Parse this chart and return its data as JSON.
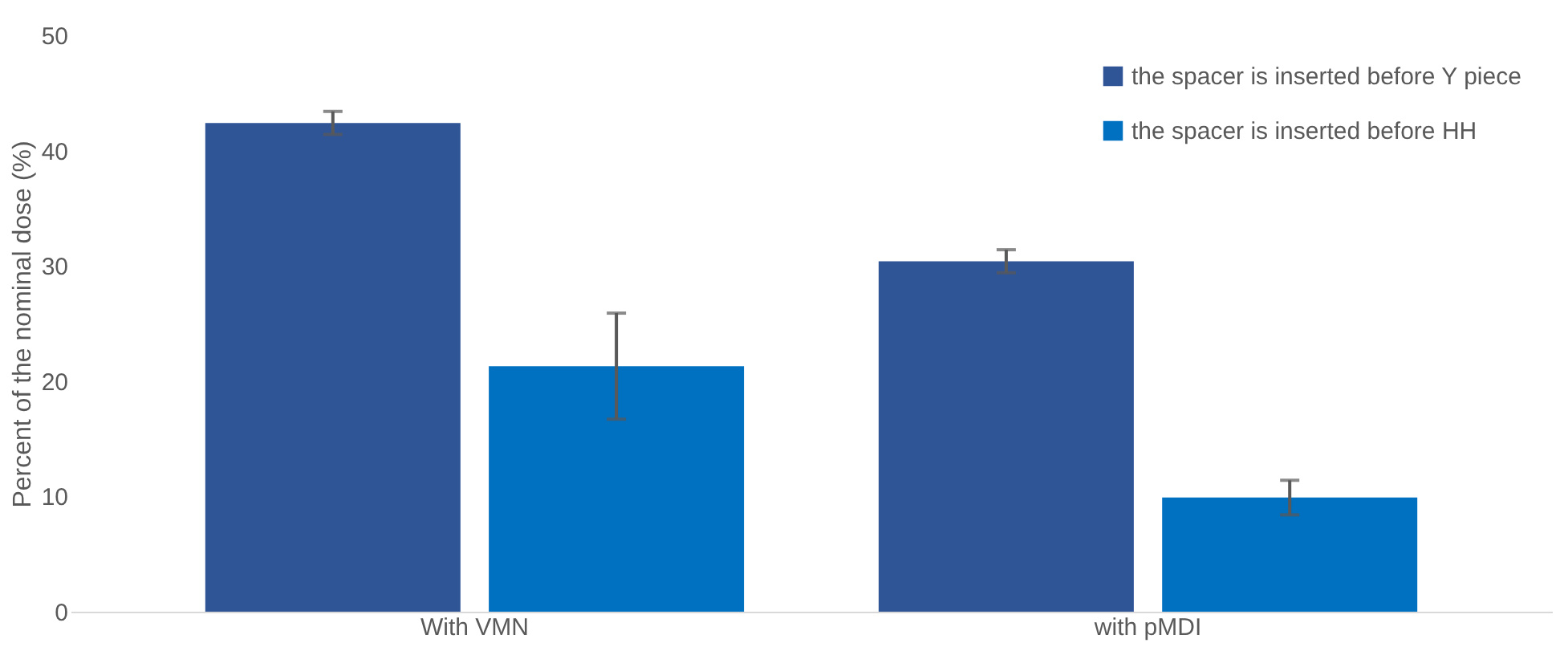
{
  "chart_data": {
    "type": "bar",
    "ylabel": "Percent of the nominal dose (%)",
    "categories": [
      "With VMN",
      "with pMDI"
    ],
    "series": [
      {
        "name": "the spacer is inserted before Y piece",
        "color": "#2f5597",
        "values": [
          42.4,
          30.4
        ],
        "errors": [
          1.0,
          1.0
        ]
      },
      {
        "name": "the spacer is inserted before HH",
        "color": "#0070c0",
        "values": [
          21.3,
          9.9
        ],
        "errors": [
          4.6,
          1.5
        ]
      }
    ],
    "ylim": [
      0,
      50
    ],
    "yticks": [
      0,
      10,
      20,
      30,
      40,
      50
    ],
    "grid": false,
    "legend": "top right"
  }
}
